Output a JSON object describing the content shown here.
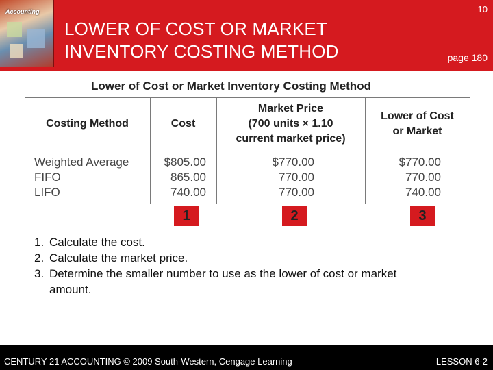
{
  "header": {
    "title": "LOWER OF COST OR MARKET\nINVENTORY COSTING METHOD",
    "slide_number": "10",
    "page_ref": "page 180",
    "book_brand": "Accounting",
    "bg_color": "#d51a1f"
  },
  "table": {
    "title": "Lower of Cost or Market Inventory Costing Method",
    "columns": [
      "Costing Method",
      "Cost",
      "Market Price\n(700 units × 1.10\ncurrent market price)",
      "Lower of Cost\nor Market"
    ],
    "rows": [
      {
        "method": "Weighted Average",
        "cost": "$805.00",
        "market": "$770.00",
        "lower": "$770.00"
      },
      {
        "method": "FIFO",
        "cost": "865.00",
        "market": "770.00",
        "lower": "770.00"
      },
      {
        "method": "LIFO",
        "cost": "740.00",
        "market": "770.00",
        "lower": "740.00"
      }
    ],
    "markers": [
      "1",
      "2",
      "3"
    ]
  },
  "steps": [
    {
      "num": "1.",
      "text": "Calculate the cost."
    },
    {
      "num": "2.",
      "text": "Calculate the market price."
    },
    {
      "num": "3.",
      "text": "Determine the smaller number to use as the lower of cost or market amount."
    }
  ],
  "footer": {
    "left": "CENTURY 21 ACCOUNTING © 2009 South-Western, Cengage Learning",
    "right": "LESSON 6-2"
  }
}
